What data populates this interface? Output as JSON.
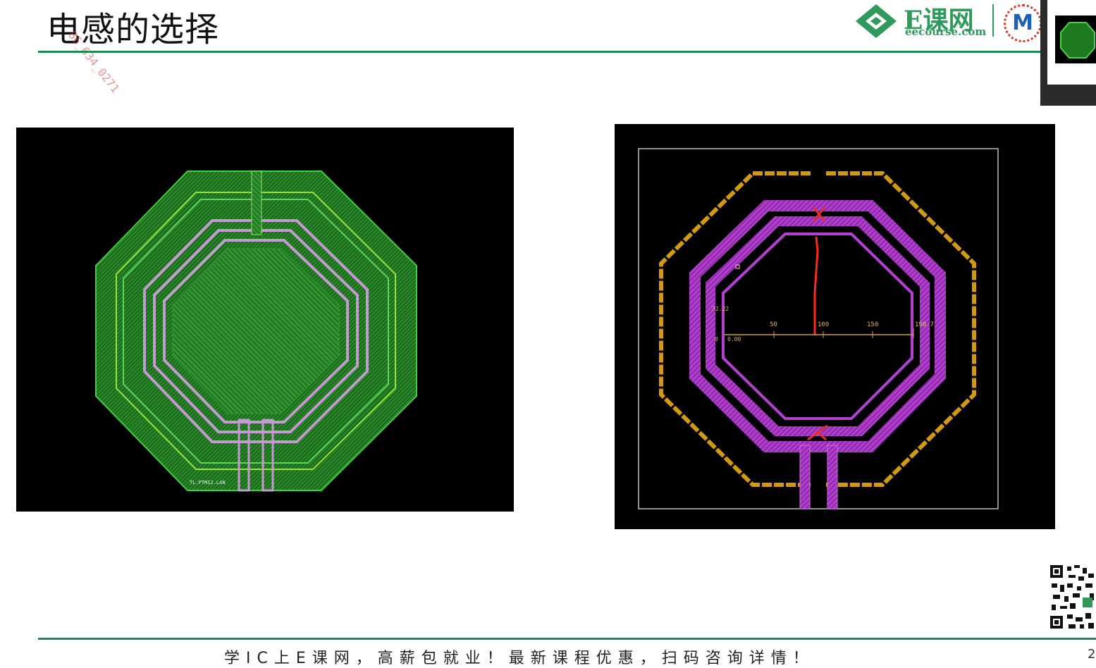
{
  "slide": {
    "title": "电感的选择",
    "watermark": "86_634_0271",
    "footer": "学IC上E课网，高薪包就业！最新课程优惠，扫码咨询详情！",
    "page_number": "2"
  },
  "logo": {
    "brand": "E课网",
    "site": "eecourse.com",
    "badge": "M",
    "accent_color": "#2f9a5b"
  },
  "figures": {
    "left": {
      "label": "TL.PTM12.LAN",
      "icon": "octagonal-spiral-inductor-layout"
    },
    "right": {
      "icon": "octagonal-inductor-with-ruler",
      "ruler": {
        "ticks": [
          "50",
          "100",
          "150",
          "198.7"
        ],
        "readout_top": "72.22",
        "readout_zero": "0",
        "readout_offset": "0.00"
      }
    }
  },
  "qr": {
    "icon": "qr-code-icon"
  }
}
